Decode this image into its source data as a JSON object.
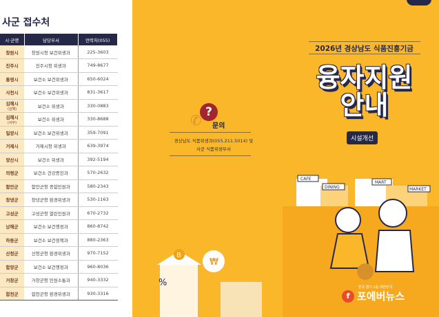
{
  "left": {
    "title": "사군 접수처",
    "headers": [
      "시·군명",
      "담당부서",
      "연락처(055)"
    ],
    "rows": [
      {
        "city": "창원시",
        "sub": "",
        "dept": "창원시청 보건위생과",
        "phone": "225-3603"
      },
      {
        "city": "진주시",
        "sub": "",
        "dept": "진주시청 위생과",
        "phone": "749-8677"
      },
      {
        "city": "통영시",
        "sub": "",
        "dept": "보건소 보건위생과",
        "phone": "650-6024"
      },
      {
        "city": "사천시",
        "sub": "",
        "dept": "보건소 보건위생과",
        "phone": "831-3617"
      },
      {
        "city": "김해시",
        "sub": "(김해)",
        "dept": "보건소 위생과",
        "phone": "330-0883"
      },
      {
        "city": "김해시",
        "sub": "(서부)",
        "dept": "보건소 위생과",
        "phone": "330-8688"
      },
      {
        "city": "밀양시",
        "sub": "",
        "dept": "보건소 보건위생과",
        "phone": "359-7091"
      },
      {
        "city": "거제시",
        "sub": "",
        "dept": "거제시청 위생과",
        "phone": "639-3974"
      },
      {
        "city": "양산시",
        "sub": "",
        "dept": "보건소 위생과",
        "phone": "392-5194"
      },
      {
        "city": "의령군",
        "sub": "",
        "dept": "보건소 건강증진과",
        "phone": "570-2632"
      },
      {
        "city": "함안군",
        "sub": "",
        "dept": "함안군청 종합민원과",
        "phone": "580-2343"
      },
      {
        "city": "창녕군",
        "sub": "",
        "dept": "창녕군청 환경위생과",
        "phone": "530-1163"
      },
      {
        "city": "고성군",
        "sub": "",
        "dept": "고성군청 열린민원과",
        "phone": "670-2732"
      },
      {
        "city": "남해군",
        "sub": "",
        "dept": "보건소 보건행정과",
        "phone": "860-8742"
      },
      {
        "city": "하동군",
        "sub": "",
        "dept": "보건소 보건정책과",
        "phone": "880-2363"
      },
      {
        "city": "산청군",
        "sub": "",
        "dept": "산청군청 환경위생과",
        "phone": "970-7152"
      },
      {
        "city": "함양군",
        "sub": "",
        "dept": "보건소 보건행정과",
        "phone": "960-8036"
      },
      {
        "city": "거창군",
        "sub": "",
        "dept": "거창군청 민원소통과",
        "phone": "940-3332"
      },
      {
        "city": "합천군",
        "sub": "",
        "dept": "합천군청 환경위생과",
        "phone": "930-3316"
      }
    ]
  },
  "inquiry": {
    "icon": "?",
    "title": "문의",
    "line1": "경상남도 식품위생과(055.211.5014) 및",
    "line2": "사군 식품위생부서"
  },
  "cover": {
    "subtitle": "2026년 경상남도 식품진흥기금",
    "title1": "융자지원",
    "title2": "안내",
    "tag": "시설개선",
    "signs": [
      "CAFE",
      "DINING",
      "MART",
      "MARKET",
      "B",
      "₩",
      "%"
    ]
  },
  "watermark": {
    "name": "포에버뉴스",
    "mark": "f",
    "small": "한국 경기 1등 대한민국"
  },
  "colors": {
    "yellow": "#fbb72a",
    "navy": "#26284a",
    "red": "#a0262f"
  }
}
